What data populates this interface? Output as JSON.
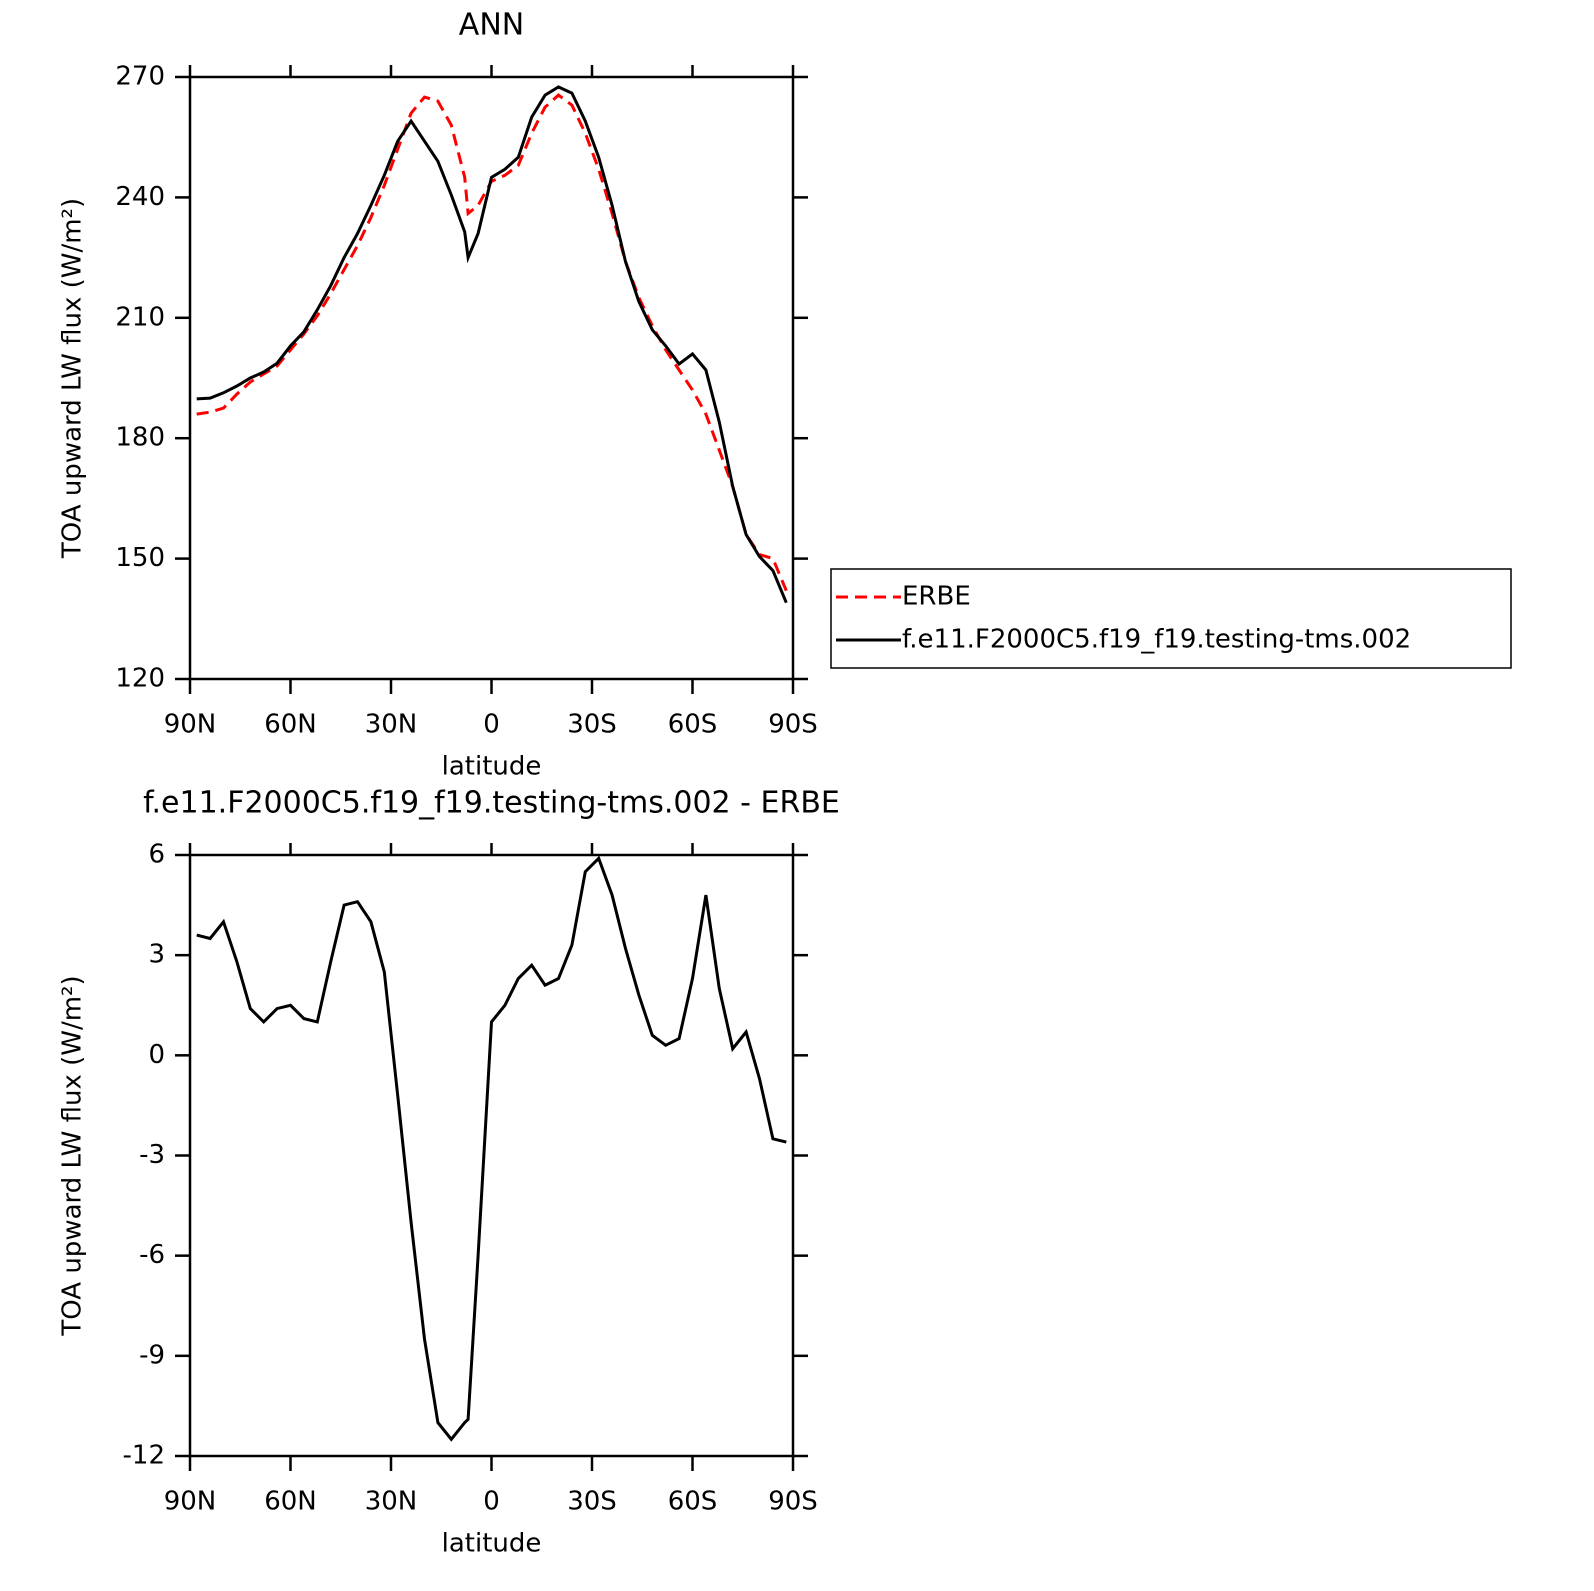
{
  "chart_data": [
    {
      "type": "line",
      "title": "ANN",
      "xlabel": "latitude",
      "ylabel": "TOA upward LW flux (W/m²)",
      "x": [
        88,
        84,
        80,
        76,
        72,
        68,
        64,
        60,
        56,
        52,
        48,
        44,
        40,
        36,
        32,
        28,
        24,
        20,
        16,
        12,
        8,
        7,
        4,
        0,
        -4,
        -8,
        -12,
        -16,
        -20,
        -24,
        -28,
        -32,
        -36,
        -40,
        -44,
        -48,
        -52,
        -56,
        -60,
        -64,
        -68,
        -72,
        -76,
        -80,
        -84,
        -88
      ],
      "series": [
        {
          "name": "ERBE",
          "color": "#ff0000",
          "dashed": true,
          "values": [
            186,
            186.5,
            187.5,
            191,
            194,
            196,
            198,
            202,
            206,
            210.5,
            216,
            222,
            228,
            235,
            243,
            252,
            261,
            265,
            264,
            258,
            245,
            236,
            238,
            244,
            245.5,
            248,
            256,
            262.5,
            265.5,
            263,
            256,
            247,
            236,
            224,
            215,
            208,
            202,
            197,
            192,
            186,
            177,
            168,
            156,
            151,
            150,
            142
          ]
        },
        {
          "name": "f.e11.F2000C5.f19_f19.testing-tms.002",
          "color": "#000000",
          "dashed": false,
          "values": [
            189.8,
            190,
            191.3,
            193,
            195,
            196.5,
            198.7,
            203,
            206.5,
            212,
            218,
            225,
            231,
            238,
            245.5,
            254,
            259,
            254,
            249,
            240.6,
            231.4,
            225,
            231,
            245,
            247,
            250,
            260,
            265.5,
            267.5,
            266,
            259,
            250,
            238,
            224,
            214,
            207,
            203,
            198.5,
            201,
            197,
            184,
            168,
            156,
            150.5,
            147,
            139
          ]
        }
      ],
      "xlim": [
        90,
        -90
      ],
      "xticks": [
        {
          "value": 90,
          "label": "90N"
        },
        {
          "value": 60,
          "label": "60N"
        },
        {
          "value": 30,
          "label": "30N"
        },
        0,
        {
          "value": -30,
          "label": "30S"
        },
        {
          "value": -60,
          "label": "60S"
        },
        {
          "value": -90,
          "label": "90S"
        }
      ],
      "ylim": [
        120,
        270
      ],
      "yticks": [
        120,
        150,
        180,
        210,
        240,
        270
      ],
      "legend": "right"
    },
    {
      "type": "line",
      "title": "f.e11.F2000C5.f19_f19.testing-tms.002 - ERBE",
      "xlabel": "latitude",
      "ylabel": "TOA upward LW flux (W/m²)",
      "x": [
        88,
        84,
        80,
        76,
        72,
        68,
        64,
        60,
        56,
        52,
        48,
        44,
        40,
        36,
        32,
        28,
        24,
        20,
        16,
        12,
        8,
        7,
        4,
        0,
        -4,
        -8,
        -12,
        -16,
        -20,
        -24,
        -28,
        -32,
        -36,
        -40,
        -44,
        -48,
        -52,
        -56,
        -60,
        -64,
        -68,
        -72,
        -76,
        -80,
        -84,
        -88
      ],
      "series": [
        {
          "color": "#000000",
          "dashed": false,
          "values": [
            3.6,
            3.5,
            4.0,
            2.8,
            1.4,
            1.0,
            1.4,
            1.5,
            1.1,
            1.0,
            2.8,
            4.5,
            4.6,
            4.0,
            2.5,
            -1.2,
            -5,
            -8.5,
            -11.0,
            -11.5,
            -11.0,
            -10.9,
            -6,
            1.0,
            1.5,
            2.3,
            2.7,
            2.1,
            2.3,
            3.3,
            5.5,
            5.9,
            4.8,
            3.2,
            1.8,
            0.6,
            0.3,
            0.5,
            2.3,
            4.8,
            2.0,
            0.2,
            0.7,
            -0.7,
            -2.5,
            -2.6
          ]
        }
      ],
      "xlim": [
        90,
        -90
      ],
      "xticks": [
        {
          "value": 90,
          "label": "90N"
        },
        {
          "value": 60,
          "label": "60N"
        },
        {
          "value": 30,
          "label": "30N"
        },
        0,
        {
          "value": -30,
          "label": "30S"
        },
        {
          "value": -60,
          "label": "60S"
        },
        {
          "value": -90,
          "label": "90S"
        }
      ],
      "ylim": [
        -12,
        6
      ],
      "yticks": [
        -12,
        -9,
        -6,
        -3,
        0,
        3,
        6
      ]
    }
  ]
}
